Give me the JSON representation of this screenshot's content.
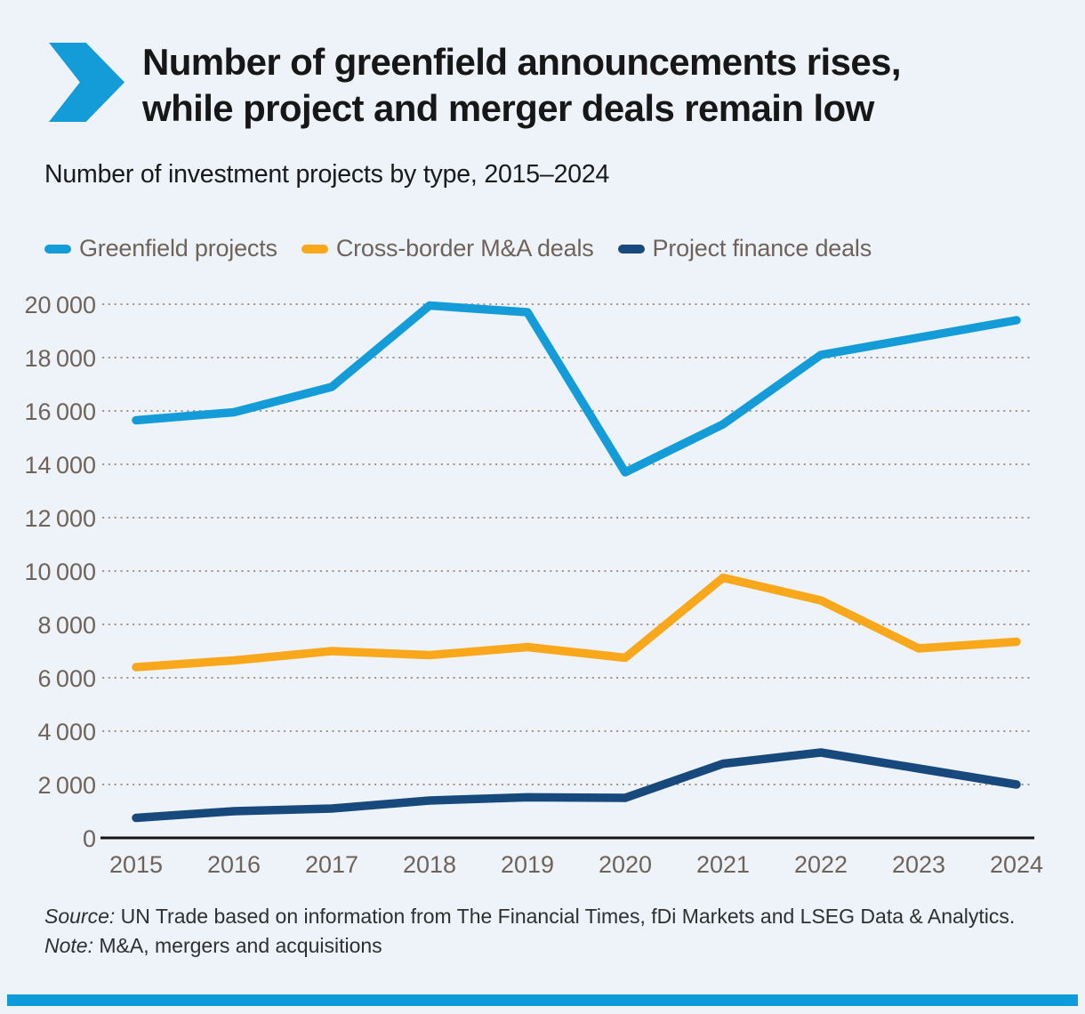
{
  "colors": {
    "background": "#edf3f9",
    "accent_blue": "#149cd8",
    "title_text": "#171717",
    "axis_text": "#6f6359",
    "grid_dots": "#a49a90",
    "axis_line": "#141414",
    "footer_text": "#2f2f2f",
    "bottom_bar": "#0d9cd9"
  },
  "header": {
    "title_line1": "Number of greenfield announcements rises,",
    "title_line2": "while project and merger deals remain low",
    "subtitle": "Number of investment projects by type, 2015–2024"
  },
  "legend": [
    {
      "label": "Greenfield projects",
      "color": "#149cd8"
    },
    {
      "label": "Cross-border M&A deals",
      "color": "#f9a81b"
    },
    {
      "label": "Project finance deals",
      "color": "#17497c"
    }
  ],
  "chart_data": {
    "type": "line",
    "title": "Number of investment projects by type, 2015–2024",
    "x": [
      2015,
      2016,
      2017,
      2018,
      2019,
      2020,
      2021,
      2022,
      2023,
      2024
    ],
    "series": [
      {
        "name": "Greenfield projects",
        "color": "#149cd8",
        "values": [
          15650,
          15950,
          16900,
          19950,
          19700,
          13700,
          15500,
          18100,
          18750,
          19400
        ]
      },
      {
        "name": "Cross-border M&A deals",
        "color": "#f9a81b",
        "values": [
          6400,
          6650,
          7000,
          6850,
          7150,
          6750,
          9750,
          8900,
          7100,
          7350
        ]
      },
      {
        "name": "Project finance deals",
        "color": "#17497c",
        "values": [
          750,
          1000,
          1100,
          1400,
          1520,
          1500,
          2780,
          3200,
          2600,
          2000
        ]
      }
    ],
    "ylim": [
      0,
      20000
    ],
    "ytick_step": 2000,
    "ytick_labels": [
      "0",
      "2 000",
      "4 000",
      "6 000",
      "8 000",
      "10 000",
      "12 000",
      "14 000",
      "16 000",
      "18 000",
      "20 000"
    ],
    "grid": "horizontal-dotted",
    "legend_position": "top"
  },
  "footer": {
    "source_prefix": "Source:",
    "source_text": "UN Trade based on information from The Financial Times, fDi Markets and LSEG Data & Analytics.",
    "note_prefix": "Note:",
    "note_text": "M&A, mergers and acquisitions"
  }
}
